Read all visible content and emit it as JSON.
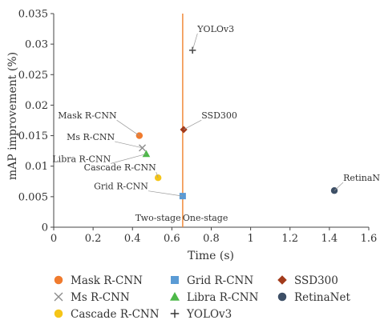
{
  "chart_data": {
    "type": "scatter",
    "xlabel": "Time (s)",
    "ylabel": "mAP improvement (%)",
    "xlim": [
      0,
      1.6
    ],
    "ylim": [
      0,
      0.035
    ],
    "x_ticks": [
      0,
      0.2,
      0.4,
      0.6,
      0.8,
      1,
      1.2,
      1.4,
      1.6
    ],
    "x_tick_labels": [
      "0",
      "0.2",
      "0.4",
      "0.6",
      "0.8",
      "1",
      "1.2",
      "1.4",
      "1.6"
    ],
    "y_ticks": [
      0,
      0.005,
      0.01,
      0.015,
      0.02,
      0.025,
      0.03,
      0.035
    ],
    "y_tick_labels": [
      "0",
      "0.005",
      "0.01",
      "0.015",
      "0.02",
      "0.025",
      "0.03",
      "0.035"
    ],
    "grid": false,
    "legend_position": "bottom",
    "divider": {
      "x": 0.655,
      "color": "#f08a3c"
    },
    "regions": [
      {
        "label": "Two-stage",
        "x": 0.53,
        "y": 0.0005
      },
      {
        "label": "One-stage",
        "x": 0.77,
        "y": 0.0005
      }
    ],
    "series": [
      {
        "name": "Mask R-CNN",
        "marker": "circle",
        "color": "#f07b2e",
        "x": 0.435,
        "y": 0.015,
        "label_x": 0.32,
        "label_y": 0.0178
      },
      {
        "name": "Ms R-CNN",
        "marker": "x",
        "color": "#8c8c8c",
        "x": 0.45,
        "y": 0.013,
        "label_x": 0.31,
        "label_y": 0.0143
      },
      {
        "name": "Libra R-CNN",
        "marker": "triangle",
        "color": "#4db848",
        "x": 0.47,
        "y": 0.012,
        "label_x": 0.29,
        "label_y": 0.0107
      },
      {
        "name": "Cascade R-CNN",
        "marker": "circle",
        "color": "#f5c518",
        "x": 0.53,
        "y": 0.0081,
        "label_x": 0.52,
        "label_y": 0.0093
      },
      {
        "name": "Grid R-CNN",
        "marker": "square",
        "color": "#5b9bd5",
        "x": 0.655,
        "y": 0.0051,
        "label_x": 0.48,
        "label_y": 0.0062
      },
      {
        "name": "SSD300",
        "marker": "diamond",
        "color": "#a23b1c",
        "x": 0.66,
        "y": 0.016,
        "label_x": 0.75,
        "label_y": 0.0178
      },
      {
        "name": "YOLOv3",
        "marker": "plus",
        "color": "#333333",
        "x": 0.705,
        "y": 0.029,
        "label_x": 0.73,
        "label_y": 0.032
      },
      {
        "name": "RetinaNet",
        "marker": "circle",
        "color": "#3d4f66",
        "x": 1.425,
        "y": 0.006,
        "label_x": 1.47,
        "label_y": 0.0076
      }
    ],
    "legend": [
      {
        "name": "Mask R-CNN",
        "marker": "circle",
        "color": "#f07b2e"
      },
      {
        "name": "Grid R-CNN",
        "marker": "square",
        "color": "#5b9bd5"
      },
      {
        "name": "SSD300",
        "marker": "diamond",
        "color": "#a23b1c"
      },
      {
        "name": "Ms R-CNN",
        "marker": "x",
        "color": "#8c8c8c"
      },
      {
        "name": "Libra R-CNN",
        "marker": "triangle",
        "color": "#4db848"
      },
      {
        "name": "RetinaNet",
        "marker": "circle",
        "color": "#3d4f66"
      },
      {
        "name": "Cascade R-CNN",
        "marker": "circle",
        "color": "#f5c518"
      },
      {
        "name": "YOLOv3",
        "marker": "plus",
        "color": "#333333"
      }
    ]
  }
}
